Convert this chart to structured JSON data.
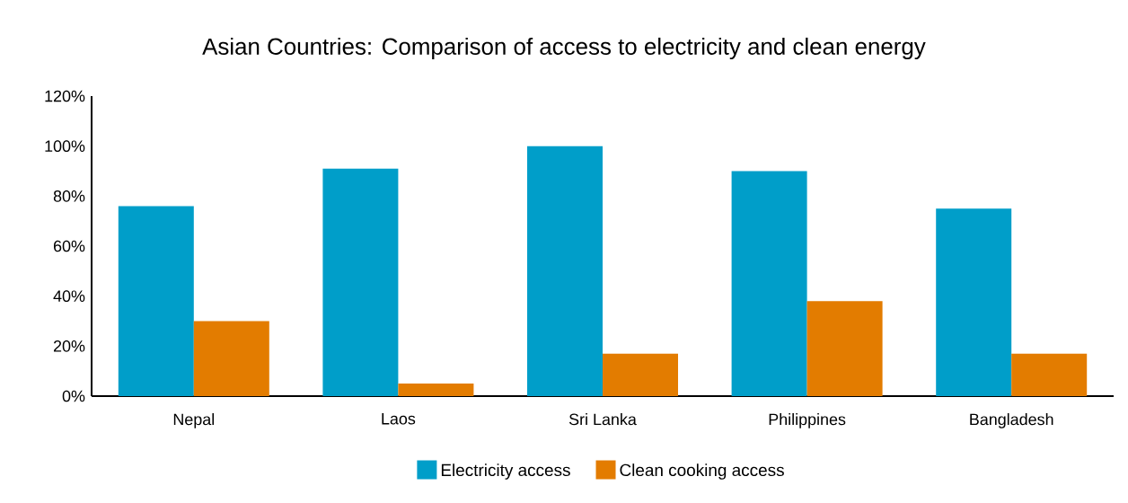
{
  "chart_data": {
    "type": "bar",
    "title": "Asian Countries: Comparison of access to electricity and clean energy",
    "categories": [
      "Nepal",
      "Laos",
      "Sri Lanka",
      "Philippines",
      "Bangladesh"
    ],
    "series": [
      {
        "name": "Electricity access",
        "color": "#009ec9",
        "values": [
          76,
          91,
          100,
          90,
          75
        ]
      },
      {
        "name": "Clean cooking access",
        "color": "#e37c00",
        "values": [
          30,
          5,
          17,
          38,
          17
        ]
      }
    ],
    "ylim": [
      0,
      120
    ],
    "yticks": [
      {
        "value": 0,
        "label": "0%"
      },
      {
        "value": 20,
        "label": "20%"
      },
      {
        "value": 40,
        "label": "40%"
      },
      {
        "value": 60,
        "label": "60%"
      },
      {
        "value": 80,
        "label": "80%"
      },
      {
        "value": 100,
        "label": "100%"
      },
      {
        "value": 120,
        "label": "120%"
      }
    ],
    "legend": "bottom"
  }
}
